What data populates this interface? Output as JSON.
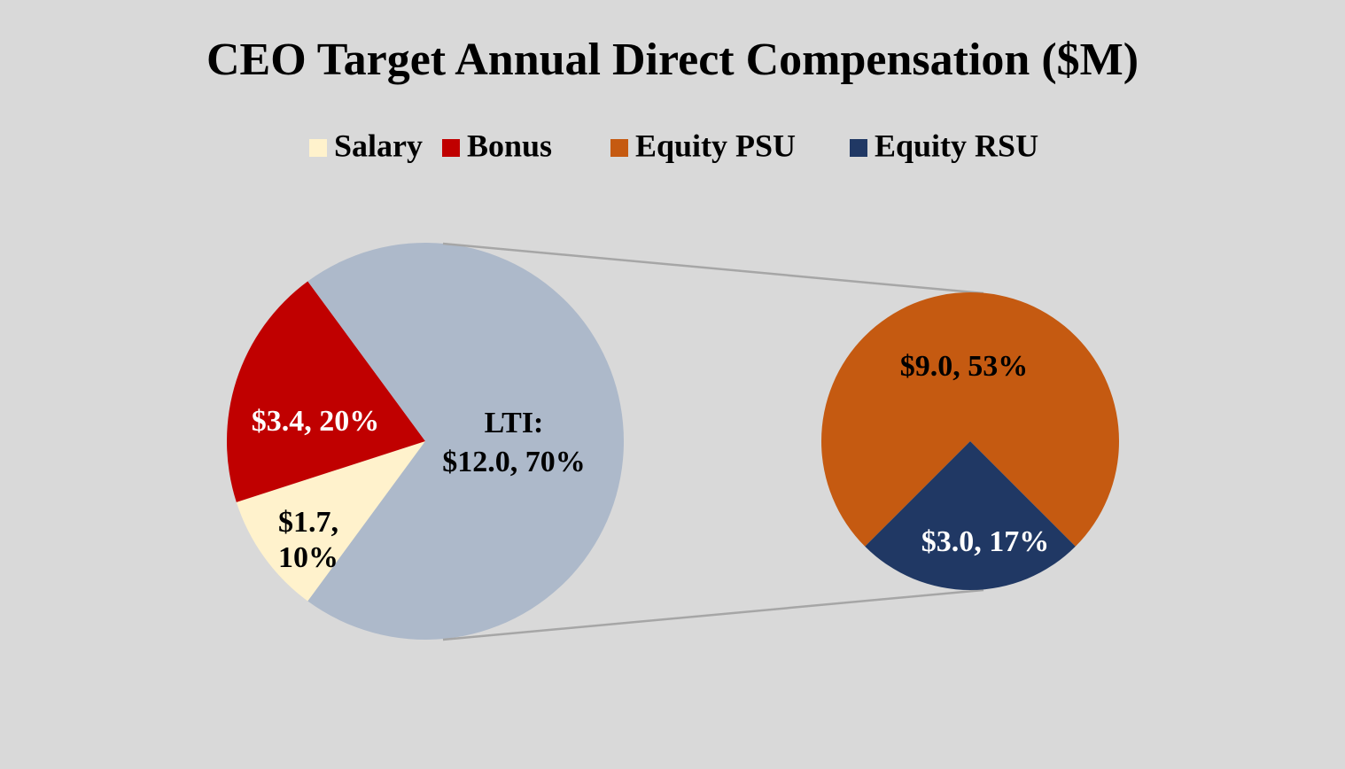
{
  "chart_data": {
    "type": "pie-of-pie",
    "title": "CEO Target Annual Direct Compensation ($M)",
    "categories": [
      "Salary",
      "Bonus",
      "Equity PSU",
      "Equity RSU"
    ],
    "values": [
      1.7,
      3.4,
      9.0,
      3.0
    ],
    "value_labels": [
      "$1.7, 10%",
      "$3.4, 20%",
      "$9.0, 53%",
      "$3.0, 17%"
    ],
    "colors": [
      "#fff2cc",
      "#c00000",
      "#c55a11",
      "#203864"
    ],
    "label_colors": [
      "#000000",
      "#ffffff",
      "#000000",
      "#ffffff"
    ],
    "second_plot_count": 2,
    "combined_label": "LTI:",
    "combined_value": 12.0,
    "combined_value_label": "$12.0, 70%",
    "combined_color": "#adb9ca",
    "legend": "top"
  }
}
